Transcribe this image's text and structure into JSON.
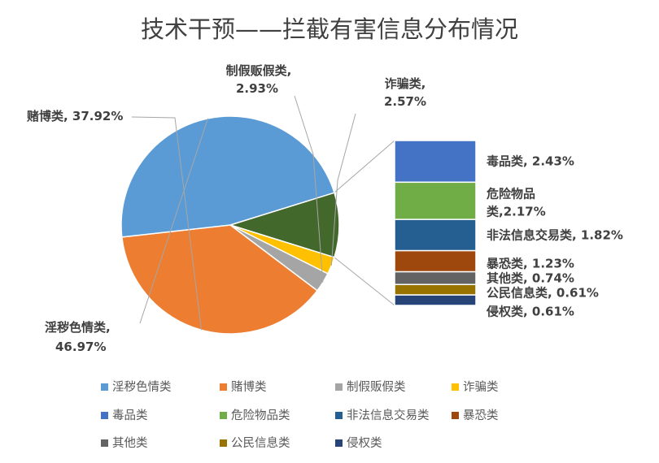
{
  "chart_data": {
    "type": "pie",
    "subtype": "bar-of-pie",
    "title": "技术干预——拦截有害信息分布情况",
    "categories": [
      "淫秽色情类",
      "赌博类",
      "制假贩假类",
      "诈骗类",
      "毒品类",
      "危险物品类",
      "非法信息交易类",
      "暴恐类",
      "其他类",
      "公民信息类",
      "侵权类"
    ],
    "values": [
      46.97,
      37.92,
      2.93,
      2.57,
      2.43,
      2.17,
      1.82,
      1.23,
      0.74,
      0.61,
      0.61
    ],
    "value_labels": [
      "46.97%",
      "37.92%",
      "2.93%",
      "2.57%",
      "2.43%",
      "2.17%",
      "1.82%",
      "1.23%",
      "0.74%",
      "0.61%",
      "0.61%"
    ],
    "colors": [
      "#5B9BD5",
      "#ED7D31",
      "#A5A5A5",
      "#FFC000",
      "#4472C4",
      "#70AD47",
      "#255E91",
      "#9E480E",
      "#636363",
      "#997300",
      "#264478"
    ],
    "secondary_bar_categories": [
      "毒品类",
      "危险物品类",
      "非法信息交易类",
      "暴恐类",
      "其他类",
      "公民信息类",
      "侵权类"
    ],
    "other_slice_color": "#43682B",
    "legend": {
      "position": "bottom",
      "entries": [
        "淫秽色情类",
        "赌博类",
        "制假贩假类",
        "诈骗类",
        "毒品类",
        "危险物品类",
        "非法信息交易类",
        "暴恐类",
        "其他类",
        "公民信息类",
        "侵权类"
      ]
    }
  }
}
